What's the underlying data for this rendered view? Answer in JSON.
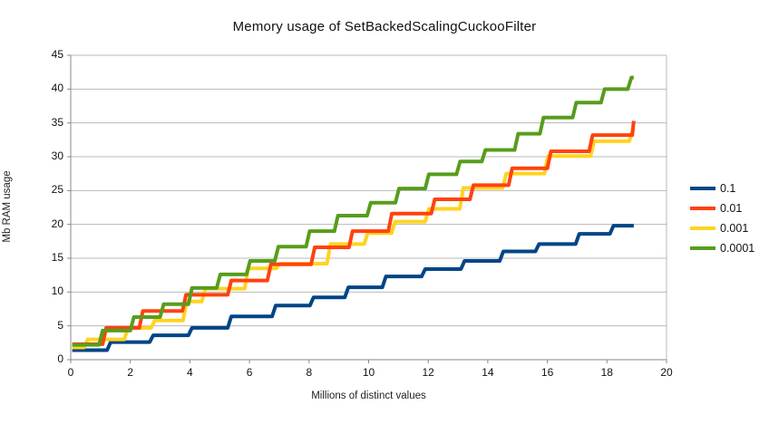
{
  "chart_data": {
    "type": "line",
    "line_style": "step",
    "title": "Memory usage of SetBackedScalingCuckooFilter",
    "xlabel": "Millions of distinct values",
    "ylabel": "Mb RAM usage",
    "xlim": [
      0,
      20
    ],
    "ylim": [
      0,
      45
    ],
    "x_ticks": [
      0,
      2,
      4,
      6,
      8,
      10,
      12,
      14,
      16,
      18,
      20
    ],
    "y_ticks": [
      0,
      5,
      10,
      15,
      20,
      25,
      30,
      35,
      40,
      45
    ],
    "grid": "horizontal-only",
    "legend_position": "right",
    "x_start": 0.05,
    "x_end": 18.9,
    "series": [
      {
        "name": "0.1",
        "color": "#004586",
        "points": [
          [
            0,
            1.4
          ],
          [
            1.22,
            2.6
          ],
          [
            2.65,
            3.6
          ],
          [
            3.95,
            4.7
          ],
          [
            5.27,
            6.4
          ],
          [
            6.76,
            8.0
          ],
          [
            8.03,
            9.2
          ],
          [
            9.2,
            10.7
          ],
          [
            10.46,
            12.3
          ],
          [
            11.78,
            13.4
          ],
          [
            13.1,
            14.6
          ],
          [
            14.4,
            16.0
          ],
          [
            15.6,
            17.1
          ],
          [
            16.95,
            18.6
          ],
          [
            18.1,
            19.8
          ]
        ]
      },
      {
        "name": "0.01",
        "color": "#ff420e",
        "points": [
          [
            0,
            2.3
          ],
          [
            1.07,
            4.7
          ],
          [
            2.3,
            7.2
          ],
          [
            3.75,
            9.6
          ],
          [
            5.27,
            11.7
          ],
          [
            6.6,
            14.1
          ],
          [
            8.07,
            16.6
          ],
          [
            9.34,
            19.0
          ],
          [
            10.66,
            21.6
          ],
          [
            12.1,
            23.7
          ],
          [
            13.4,
            25.8
          ],
          [
            14.7,
            28.3
          ],
          [
            16.0,
            30.8
          ],
          [
            17.4,
            33.2
          ],
          [
            18.85,
            35.3
          ]
        ]
      },
      {
        "name": "0.001",
        "color": "#ffd320",
        "points": [
          [
            0,
            1.8
          ],
          [
            0.45,
            3.0
          ],
          [
            1.8,
            4.7
          ],
          [
            2.7,
            5.8
          ],
          [
            3.77,
            8.6
          ],
          [
            4.4,
            10.5
          ],
          [
            5.84,
            13.5
          ],
          [
            6.9,
            14.2
          ],
          [
            8.6,
            17.1
          ],
          [
            9.85,
            18.7
          ],
          [
            10.77,
            20.4
          ],
          [
            11.9,
            22.3
          ],
          [
            13.06,
            25.4
          ],
          [
            14.5,
            27.5
          ],
          [
            15.9,
            30.1
          ],
          [
            17.45,
            32.3
          ],
          [
            18.75,
            34.0
          ]
        ]
      },
      {
        "name": "0.0001",
        "color": "#579d1c",
        "points": [
          [
            0,
            2.2
          ],
          [
            0.95,
            4.3
          ],
          [
            2.0,
            6.3
          ],
          [
            3.0,
            8.2
          ],
          [
            3.95,
            10.6
          ],
          [
            4.9,
            12.6
          ],
          [
            5.9,
            14.6
          ],
          [
            6.85,
            16.7
          ],
          [
            7.9,
            19.0
          ],
          [
            8.85,
            21.3
          ],
          [
            9.95,
            23.2
          ],
          [
            10.9,
            25.3
          ],
          [
            11.9,
            27.4
          ],
          [
            12.95,
            29.3
          ],
          [
            13.8,
            31.0
          ],
          [
            14.9,
            33.4
          ],
          [
            15.75,
            35.8
          ],
          [
            16.85,
            38.0
          ],
          [
            17.8,
            40.0
          ],
          [
            18.7,
            41.7
          ]
        ]
      }
    ],
    "colors": {
      "background": "#ffffff",
      "gridline": "#b8b8b8",
      "axis": "#888888",
      "text": "#111111"
    }
  },
  "legend": {
    "items": [
      {
        "label": "0.1"
      },
      {
        "label": "0.01"
      },
      {
        "label": "0.001"
      },
      {
        "label": "0.0001"
      }
    ]
  }
}
